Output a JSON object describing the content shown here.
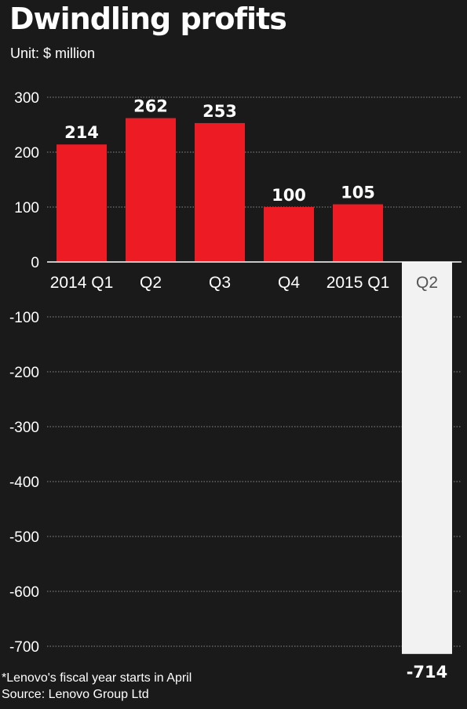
{
  "header": {
    "title": "Dwindling profits",
    "subtitle": "Unit: $ million"
  },
  "footer": {
    "note": "*Lenovo's fiscal year starts in April",
    "source": "Source: Lenovo Group Ltd"
  },
  "colors": {
    "background": "#1a1a1a",
    "positive_bar": "#ed1c24",
    "negative_bar": "#f2f2f2",
    "text": "#ffffff",
    "gridline": "#8a8a8a"
  },
  "chart_data": {
    "type": "bar",
    "categories": [
      "2014 Q1",
      "Q2",
      "Q3",
      "Q4",
      "2015 Q1",
      "Q2"
    ],
    "values": [
      214,
      262,
      253,
      100,
      105,
      -714
    ],
    "data_labels": [
      "214",
      "262",
      "253",
      "100",
      "105",
      "-714"
    ],
    "yticks": [
      300,
      200,
      100,
      0,
      -100,
      -200,
      -300,
      -400,
      -500,
      -600,
      -700
    ],
    "ylim": [
      -714,
      300
    ],
    "grid": true,
    "title": "Dwindling profits",
    "xlabel": "",
    "ylabel": ""
  }
}
